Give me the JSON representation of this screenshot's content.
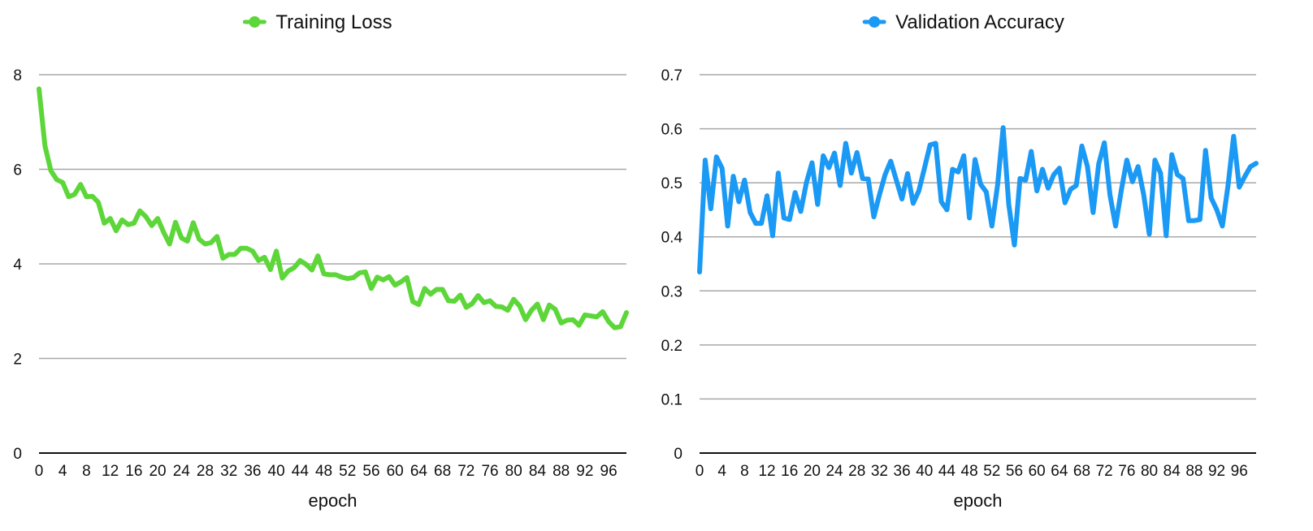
{
  "chart_data": [
    {
      "type": "line",
      "legend_position": "top-center",
      "grid": true,
      "xlabel": "epoch",
      "ylabel": "",
      "ylim": [
        0,
        8
      ],
      "y_ticks": [
        "0",
        "2",
        "4",
        "6",
        "8"
      ],
      "x_ticks": [
        "0",
        "4",
        "8",
        "12",
        "16",
        "20",
        "24",
        "28",
        "32",
        "36",
        "40",
        "44",
        "48",
        "52",
        "56",
        "60",
        "64",
        "68",
        "72",
        "76",
        "80",
        "84",
        "88",
        "92",
        "96"
      ],
      "x_range": [
        0,
        99
      ],
      "series": [
        {
          "name": "Training Loss",
          "color": "#5cd638",
          "x": [
            0,
            1,
            2,
            3,
            4,
            5,
            6,
            7,
            8,
            9,
            10,
            11,
            12,
            13,
            14,
            15,
            16,
            17,
            18,
            19,
            20,
            21,
            22,
            23,
            24,
            25,
            26,
            27,
            28,
            29,
            30,
            31,
            32,
            33,
            34,
            35,
            36,
            37,
            38,
            39,
            40,
            41,
            42,
            43,
            44,
            45,
            46,
            47,
            48,
            49,
            50,
            51,
            52,
            53,
            54,
            55,
            56,
            57,
            58,
            59,
            60,
            61,
            62,
            63,
            64,
            65,
            66,
            67,
            68,
            69,
            70,
            71,
            72,
            73,
            74,
            75,
            76,
            77,
            78,
            79,
            80,
            81,
            82,
            83,
            84,
            85,
            86,
            87,
            88,
            89,
            90,
            91,
            92,
            93,
            94,
            95,
            96,
            97,
            98,
            99
          ],
          "values": [
            7.7,
            6.5,
            5.97,
            5.78,
            5.72,
            5.42,
            5.47,
            5.68,
            5.42,
            5.43,
            5.3,
            4.86,
            4.96,
            4.7,
            4.93,
            4.83,
            4.86,
            5.12,
            5.0,
            4.81,
            4.96,
            4.67,
            4.42,
            4.88,
            4.55,
            4.48,
            4.87,
            4.52,
            4.42,
            4.45,
            4.58,
            4.12,
            4.2,
            4.2,
            4.33,
            4.33,
            4.27,
            4.07,
            4.14,
            3.88,
            4.27,
            3.7,
            3.85,
            3.92,
            4.07,
            3.99,
            3.87,
            4.17,
            3.79,
            3.77,
            3.77,
            3.72,
            3.69,
            3.71,
            3.81,
            3.83,
            3.48,
            3.72,
            3.66,
            3.73,
            3.55,
            3.62,
            3.71,
            3.2,
            3.14,
            3.48,
            3.36,
            3.46,
            3.46,
            3.22,
            3.21,
            3.34,
            3.08,
            3.16,
            3.33,
            3.18,
            3.22,
            3.1,
            3.09,
            3.02,
            3.25,
            3.11,
            2.82,
            3.02,
            3.15,
            2.82,
            3.13,
            3.04,
            2.75,
            2.81,
            2.82,
            2.7,
            2.92,
            2.9,
            2.88,
            2.99,
            2.78,
            2.65,
            2.67,
            2.97
          ]
        }
      ]
    },
    {
      "type": "line",
      "legend_position": "top-center",
      "grid": true,
      "xlabel": "epoch",
      "ylabel": "",
      "ylim": [
        0,
        0.7
      ],
      "y_ticks": [
        "0",
        "0.1",
        "0.2",
        "0.3",
        "0.4",
        "0.5",
        "0.6",
        "0.7"
      ],
      "x_ticks": [
        "0",
        "4",
        "8",
        "12",
        "16",
        "20",
        "24",
        "28",
        "32",
        "36",
        "40",
        "44",
        "48",
        "52",
        "56",
        "60",
        "64",
        "68",
        "72",
        "76",
        "80",
        "84",
        "88",
        "92",
        "96"
      ],
      "x_range": [
        0,
        99
      ],
      "series": [
        {
          "name": "Validation Accuracy",
          "color": "#1a99f5",
          "x": [
            0,
            1,
            2,
            3,
            4,
            5,
            6,
            7,
            8,
            9,
            10,
            11,
            12,
            13,
            14,
            15,
            16,
            17,
            18,
            19,
            20,
            21,
            22,
            23,
            24,
            25,
            26,
            27,
            28,
            29,
            30,
            31,
            32,
            33,
            34,
            35,
            36,
            37,
            38,
            39,
            40,
            41,
            42,
            43,
            44,
            45,
            46,
            47,
            48,
            49,
            50,
            51,
            52,
            53,
            54,
            55,
            56,
            57,
            58,
            59,
            60,
            61,
            62,
            63,
            64,
            65,
            66,
            67,
            68,
            69,
            70,
            71,
            72,
            73,
            74,
            75,
            76,
            77,
            78,
            79,
            80,
            81,
            82,
            83,
            84,
            85,
            86,
            87,
            88,
            89,
            90,
            91,
            92,
            93,
            94,
            95,
            96,
            97,
            98,
            99
          ],
          "values": [
            0.335,
            0.542,
            0.452,
            0.548,
            0.527,
            0.42,
            0.512,
            0.465,
            0.505,
            0.445,
            0.425,
            0.425,
            0.476,
            0.402,
            0.518,
            0.435,
            0.432,
            0.482,
            0.447,
            0.5,
            0.537,
            0.46,
            0.55,
            0.528,
            0.555,
            0.495,
            0.573,
            0.518,
            0.556,
            0.508,
            0.507,
            0.437,
            0.478,
            0.515,
            0.54,
            0.505,
            0.47,
            0.517,
            0.462,
            0.485,
            0.527,
            0.57,
            0.573,
            0.465,
            0.45,
            0.525,
            0.52,
            0.55,
            0.435,
            0.543,
            0.497,
            0.483,
            0.42,
            0.495,
            0.602,
            0.46,
            0.385,
            0.508,
            0.505,
            0.558,
            0.485,
            0.525,
            0.49,
            0.515,
            0.527,
            0.463,
            0.488,
            0.495,
            0.568,
            0.53,
            0.445,
            0.535,
            0.574,
            0.478,
            0.42,
            0.485,
            0.542,
            0.502,
            0.53,
            0.478,
            0.405,
            0.542,
            0.518,
            0.402,
            0.552,
            0.515,
            0.508,
            0.43,
            0.43,
            0.432,
            0.56,
            0.472,
            0.45,
            0.42,
            0.495,
            0.586,
            0.492,
            0.512,
            0.53,
            0.536
          ]
        }
      ]
    }
  ]
}
